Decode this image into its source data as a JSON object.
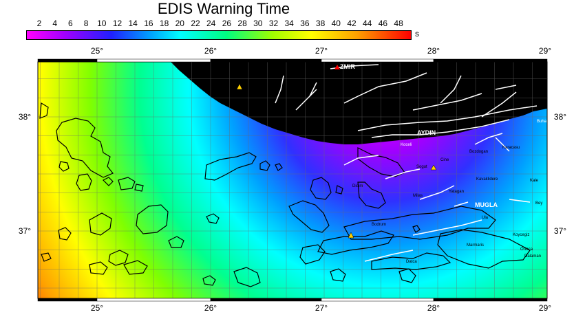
{
  "title": "EDIS Warning Time",
  "colorbar": {
    "ticks": [
      "2",
      "4",
      "6",
      "8",
      "10",
      "12",
      "14",
      "16",
      "18",
      "20",
      "22",
      "24",
      "26",
      "28",
      "30",
      "32",
      "34",
      "36",
      "38",
      "40",
      "42",
      "44",
      "46",
      "48"
    ],
    "unit": "s"
  },
  "axes": {
    "lon_labels": [
      "25°",
      "26°",
      "27°",
      "28°",
      "29°"
    ],
    "lat_labels": [
      "38°",
      "37°"
    ]
  },
  "places": {
    "izmir": "ZMIR",
    "aydin": "AYDIN",
    "mugla": "MUGLA",
    "bodrum": "Bodrum",
    "ula": "Ula",
    "koycegiz": "Koycegiz",
    "ortaca": "Ortaca",
    "dalaman": "Dalaman",
    "marmaris": "Marmaris",
    "milas": "Milas",
    "yatagan": "Yatagan",
    "kavaklidere": "Kavaklidere",
    "kale": "Kale",
    "bey": "Bey",
    "cine": "Cine",
    "sogut": "Sogut",
    "karacasu": "Karacasu",
    "bozdogan": "Bozdogan",
    "buharkent": "Buharkent",
    "koceli": "Koceli",
    "datca": "Datca",
    "didim": "Didim"
  },
  "colors": {
    "early": "#ff00ff",
    "mid": "#00ffff",
    "late": "#ff0000",
    "land_mask": "#000000",
    "faults": "#ffffff",
    "station_marker": "#ffd000"
  }
}
